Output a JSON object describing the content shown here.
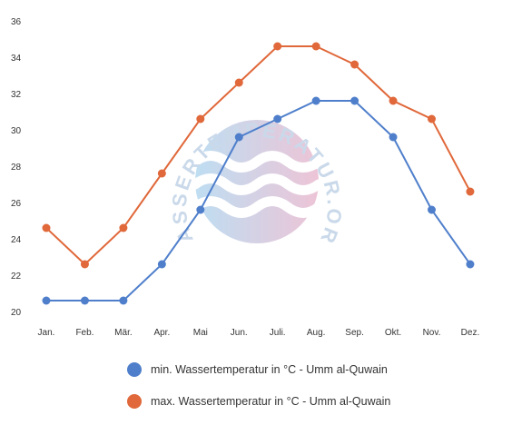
{
  "chart_data": {
    "type": "line",
    "categories": [
      "Jan.",
      "Feb.",
      "Mär.",
      "Apr.",
      "Mai",
      "Jun.",
      "Juli.",
      "Aug.",
      "Sep.",
      "Okt.",
      "Nov.",
      "Dez."
    ],
    "series": [
      {
        "name": "min. Wassertemperatur in °C - Umm al-Quwain",
        "color": "#4f7fcb",
        "values": [
          20.6,
          20.6,
          20.6,
          22.6,
          25.6,
          29.6,
          30.6,
          31.6,
          31.6,
          29.6,
          25.6,
          22.6
        ]
      },
      {
        "name": "max. Wassertemperatur in °C - Umm al-Quwain",
        "color": "#e0683a",
        "values": [
          24.6,
          22.6,
          24.6,
          27.6,
          30.6,
          32.6,
          34.6,
          34.6,
          33.6,
          31.6,
          30.6,
          26.6
        ]
      }
    ],
    "y_ticks": [
      "36",
      "34",
      "32",
      "30",
      "28",
      "26",
      "24",
      "22",
      "20"
    ],
    "ylim": [
      20,
      36
    ],
    "grid": false,
    "legend_position": "bottom"
  },
  "watermark": {
    "text": "WASSERTEMPERATUR.ORG"
  }
}
